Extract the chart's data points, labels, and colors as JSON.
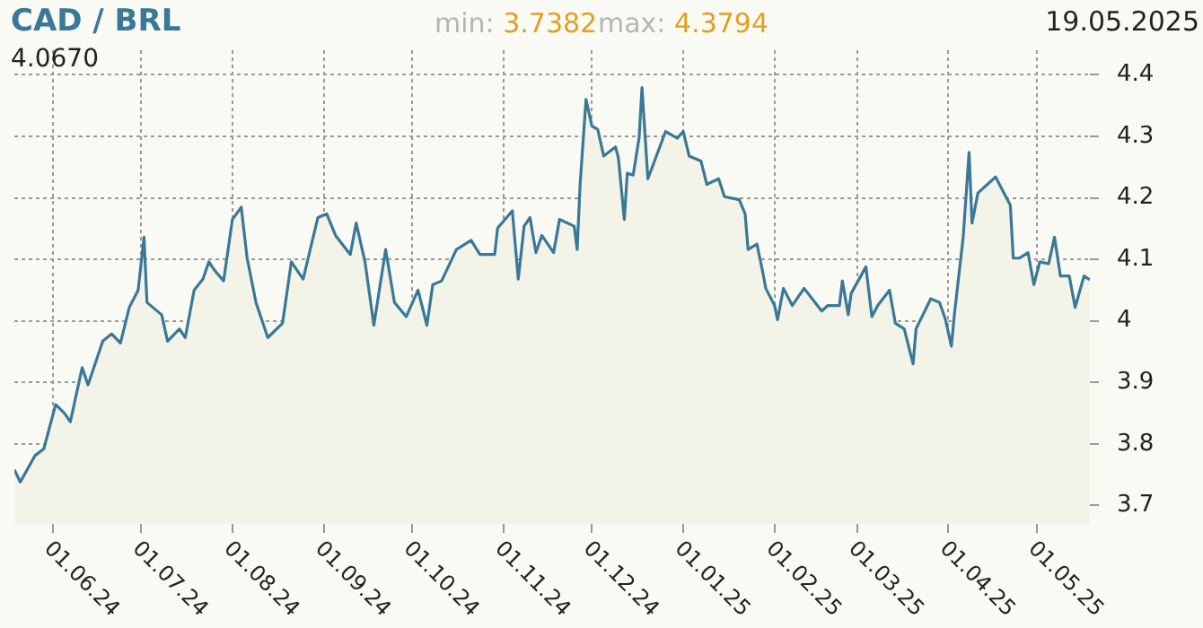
{
  "chart_data": {
    "type": "area",
    "title": "CAD / BRL",
    "annotations": [
      "min: 3.7382",
      "max: 4.3794",
      "19.05.2025",
      "4.0670"
    ],
    "x": [
      "2024-05-19",
      "2024-05-21",
      "2024-05-26",
      "2024-05-29",
      "2024-06-02",
      "2024-06-05",
      "2024-06-07",
      "2024-06-11",
      "2024-06-13",
      "2024-06-18",
      "2024-06-21",
      "2024-06-24",
      "2024-06-27",
      "2024-06-30",
      "2024-07-02",
      "2024-07-03",
      "2024-07-08",
      "2024-07-10",
      "2024-07-14",
      "2024-07-16",
      "2024-07-19",
      "2024-07-22",
      "2024-07-24",
      "2024-07-26",
      "2024-07-29",
      "2024-08-01",
      "2024-08-04",
      "2024-08-06",
      "2024-08-09",
      "2024-08-13",
      "2024-08-18",
      "2024-08-21",
      "2024-08-25",
      "2024-08-30",
      "2024-09-02",
      "2024-09-05",
      "2024-09-10",
      "2024-09-12",
      "2024-09-15",
      "2024-09-18",
      "2024-09-22",
      "2024-09-25",
      "2024-09-29",
      "2024-10-03",
      "2024-10-06",
      "2024-10-08",
      "2024-10-11",
      "2024-10-16",
      "2024-10-21",
      "2024-10-24",
      "2024-10-29",
      "2024-10-30",
      "2024-11-04",
      "2024-11-06",
      "2024-11-08",
      "2024-11-10",
      "2024-11-12",
      "2024-11-14",
      "2024-11-18",
      "2024-11-20",
      "2024-11-25",
      "2024-11-26",
      "2024-11-27",
      "2024-11-29",
      "2024-12-01",
      "2024-12-03",
      "2024-12-05",
      "2024-12-09",
      "2024-12-10",
      "2024-12-12",
      "2024-12-13",
      "2024-12-15",
      "2024-12-17",
      "2024-12-18",
      "2024-12-20",
      "2024-12-26",
      "2024-12-30",
      "2025-01-01",
      "2025-01-03",
      "2025-01-07",
      "2025-01-09",
      "2025-01-13",
      "2025-01-15",
      "2025-01-20",
      "2025-01-22",
      "2025-01-23",
      "2025-01-26",
      "2025-01-28",
      "2025-01-29",
      "2025-02-01",
      "2025-02-02",
      "2025-02-04",
      "2025-02-07",
      "2025-02-11",
      "2025-02-17",
      "2025-02-19",
      "2025-02-23",
      "2025-02-24",
      "2025-02-26",
      "2025-02-27",
      "2025-03-04",
      "2025-03-06",
      "2025-03-08",
      "2025-03-12",
      "2025-03-14",
      "2025-03-17",
      "2025-03-20",
      "2025-03-21",
      "2025-03-26",
      "2025-03-29",
      "2025-03-31",
      "2025-04-02",
      "2025-04-03",
      "2025-04-06",
      "2025-04-08",
      "2025-04-09",
      "2025-04-11",
      "2025-04-17",
      "2025-04-22",
      "2025-04-23",
      "2025-04-25",
      "2025-04-28",
      "2025-04-30",
      "2025-05-02",
      "2025-05-05",
      "2025-05-07",
      "2025-05-09",
      "2025-05-12",
      "2025-05-14",
      "2025-05-17",
      "2025-05-19"
    ],
    "series": [
      {
        "color": "#3a7898",
        "values": [
          3.758,
          3.7382,
          3.781,
          3.792,
          3.864,
          3.85,
          3.836,
          3.924,
          3.896,
          3.967,
          3.979,
          3.964,
          4.022,
          4.05,
          4.136,
          4.03,
          4.01,
          3.967,
          3.987,
          3.973,
          4.05,
          4.068,
          4.096,
          4.082,
          4.065,
          4.165,
          4.185,
          4.102,
          4.03,
          3.973,
          3.996,
          4.096,
          4.068,
          4.168,
          4.174,
          4.139,
          4.108,
          4.159,
          4.096,
          3.993,
          4.116,
          4.03,
          4.007,
          4.05,
          3.993,
          4.059,
          4.065,
          4.116,
          4.131,
          4.108,
          4.108,
          4.151,
          4.179,
          4.068,
          4.154,
          4.168,
          4.111,
          4.139,
          4.111,
          4.165,
          4.154,
          4.116,
          4.222,
          4.36,
          4.317,
          4.311,
          4.268,
          4.283,
          4.265,
          4.165,
          4.24,
          4.237,
          4.297,
          4.3794,
          4.231,
          4.308,
          4.297,
          4.308,
          4.268,
          4.26,
          4.222,
          4.231,
          4.202,
          4.197,
          4.174,
          4.116,
          4.125,
          4.079,
          4.053,
          4.025,
          4.002,
          4.053,
          4.025,
          4.053,
          4.016,
          4.025,
          4.025,
          4.065,
          4.01,
          4.045,
          4.088,
          4.007,
          4.025,
          4.05,
          3.996,
          3.987,
          3.93,
          3.987,
          4.036,
          4.03,
          4.002,
          3.959,
          4.01,
          4.136,
          4.274,
          4.159,
          4.208,
          4.234,
          4.188,
          4.102,
          4.102,
          4.111,
          4.059,
          4.096,
          4.093,
          4.136,
          4.073,
          4.073,
          4.022,
          4.073,
          4.067
        ]
      }
    ],
    "xlim": [
      "2024-05-19",
      "2025-05-19"
    ],
    "xticks": [
      {
        "value": "2024-06-01",
        "label": "01.06.24"
      },
      {
        "value": "2024-07-01",
        "label": "01.07.24"
      },
      {
        "value": "2024-08-01",
        "label": "01.08.24"
      },
      {
        "value": "2024-09-01",
        "label": "01.09.24"
      },
      {
        "value": "2024-10-01",
        "label": "01.10.24"
      },
      {
        "value": "2024-11-01",
        "label": "01.11.24"
      },
      {
        "value": "2024-12-01",
        "label": "01.12.24"
      },
      {
        "value": "2025-01-01",
        "label": "01.01.25"
      },
      {
        "value": "2025-02-01",
        "label": "01.02.25"
      },
      {
        "value": "2025-03-01",
        "label": "01.03.25"
      },
      {
        "value": "2025-04-01",
        "label": "01.04.25"
      },
      {
        "value": "2025-05-01",
        "label": "01.05.25"
      }
    ],
    "ylim": [
      3.67,
      4.44
    ],
    "yticks": [
      3.7,
      3.8,
      3.9,
      4,
      4.1,
      4.2,
      4.3,
      4.4
    ],
    "grid": true,
    "legend": false,
    "marker": "none",
    "line_style": "solid"
  }
}
